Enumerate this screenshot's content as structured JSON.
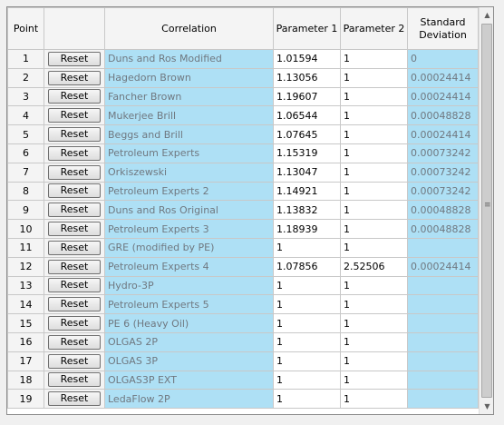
{
  "headers": {
    "point": "Point",
    "reset": "",
    "correlation": "Correlation",
    "param1": "Parameter 1",
    "param2": "Parameter 2",
    "stddev": "Standard Deviation"
  },
  "reset_label": "Reset",
  "rows": [
    {
      "point": "1",
      "correlation": "Duns and Ros Modified",
      "param1": "1.01594",
      "param2": "1",
      "stddev": "0"
    },
    {
      "point": "2",
      "correlation": "Hagedorn Brown",
      "param1": "1.13056",
      "param2": "1",
      "stddev": "0.00024414"
    },
    {
      "point": "3",
      "correlation": "Fancher Brown",
      "param1": "1.19607",
      "param2": "1",
      "stddev": "0.00024414"
    },
    {
      "point": "4",
      "correlation": "Mukerjee Brill",
      "param1": "1.06544",
      "param2": "1",
      "stddev": "0.00048828"
    },
    {
      "point": "5",
      "correlation": "Beggs and Brill",
      "param1": "1.07645",
      "param2": "1",
      "stddev": "0.00024414"
    },
    {
      "point": "6",
      "correlation": "Petroleum Experts",
      "param1": "1.15319",
      "param2": "1",
      "stddev": "0.00073242"
    },
    {
      "point": "7",
      "correlation": "Orkiszewski",
      "param1": "1.13047",
      "param2": "1",
      "stddev": "0.00073242"
    },
    {
      "point": "8",
      "correlation": "Petroleum Experts 2",
      "param1": "1.14921",
      "param2": "1",
      "stddev": "0.00073242"
    },
    {
      "point": "9",
      "correlation": "Duns and Ros Original",
      "param1": "1.13832",
      "param2": "1",
      "stddev": "0.00048828"
    },
    {
      "point": "10",
      "correlation": "Petroleum Experts 3",
      "param1": "1.18939",
      "param2": "1",
      "stddev": "0.00048828"
    },
    {
      "point": "11",
      "correlation": "GRE (modified by PE)",
      "param1": "1",
      "param2": "1",
      "stddev": ""
    },
    {
      "point": "12",
      "correlation": "Petroleum Experts 4",
      "param1": "1.07856",
      "param2": "2.52506",
      "stddev": "0.00024414"
    },
    {
      "point": "13",
      "correlation": "Hydro-3P",
      "param1": "1",
      "param2": "1",
      "stddev": ""
    },
    {
      "point": "14",
      "correlation": "Petroleum Experts 5",
      "param1": "1",
      "param2": "1",
      "stddev": ""
    },
    {
      "point": "15",
      "correlation": "PE 6 (Heavy Oil)",
      "param1": "1",
      "param2": "1",
      "stddev": ""
    },
    {
      "point": "16",
      "correlation": "OLGAS 2P",
      "param1": "1",
      "param2": "1",
      "stddev": ""
    },
    {
      "point": "17",
      "correlation": "OLGAS 3P",
      "param1": "1",
      "param2": "1",
      "stddev": ""
    },
    {
      "point": "18",
      "correlation": "OLGAS3P EXT",
      "param1": "1",
      "param2": "1",
      "stddev": ""
    },
    {
      "point": "19",
      "correlation": "LedaFlow 2P",
      "param1": "1",
      "param2": "1",
      "stddev": ""
    }
  ],
  "icons": {
    "scroll_up": "up-arrow-icon",
    "scroll_down": "down-arrow-icon",
    "grip": "grip-icon"
  }
}
